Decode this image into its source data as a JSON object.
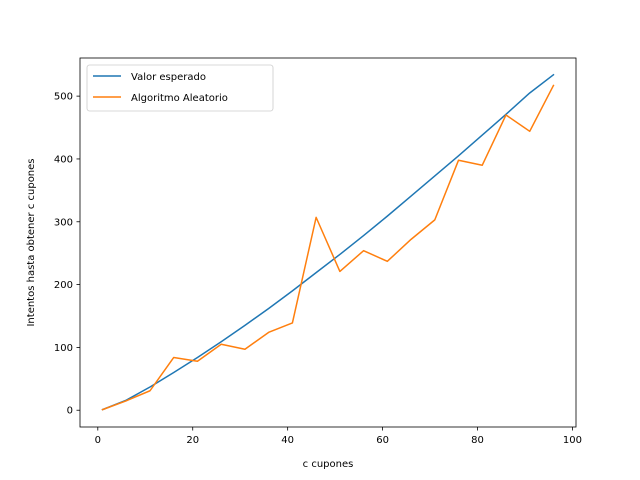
{
  "chart_data": {
    "type": "line",
    "title": "",
    "xlabel": "c cupones",
    "ylabel": "Intentos hasta obtener c cupones",
    "xlim": [
      -3.75,
      100.75
    ],
    "ylim": [
      -26.7,
      560.7
    ],
    "xticks": [
      0,
      20,
      40,
      60,
      80,
      100
    ],
    "yticks": [
      0,
      100,
      200,
      300,
      400,
      500
    ],
    "grid": false,
    "legend_position": "top-left",
    "series": [
      {
        "name": "Valor esperado",
        "color": "#1f77b4",
        "x": [
          1,
          6,
          11,
          16,
          21,
          26,
          31,
          36,
          41,
          46,
          51,
          56,
          61,
          66,
          71,
          76,
          81,
          86,
          91,
          96
        ],
        "y": [
          1,
          16,
          37,
          60,
          84,
          109,
          135,
          162,
          190,
          219,
          248,
          278,
          309,
          341,
          373,
          405,
          438,
          471,
          505,
          534
        ]
      },
      {
        "name": "Algoritmo Aleatorio",
        "color": "#ff7f0e",
        "x": [
          1,
          6,
          11,
          16,
          21,
          26,
          31,
          36,
          41,
          46,
          51,
          56,
          61,
          66,
          71,
          76,
          81,
          86,
          91,
          96
        ],
        "y": [
          1,
          15,
          31,
          84,
          78,
          105,
          97,
          124,
          139,
          307,
          221,
          254,
          237,
          272,
          303,
          398,
          390,
          470,
          444,
          517
        ]
      }
    ]
  }
}
